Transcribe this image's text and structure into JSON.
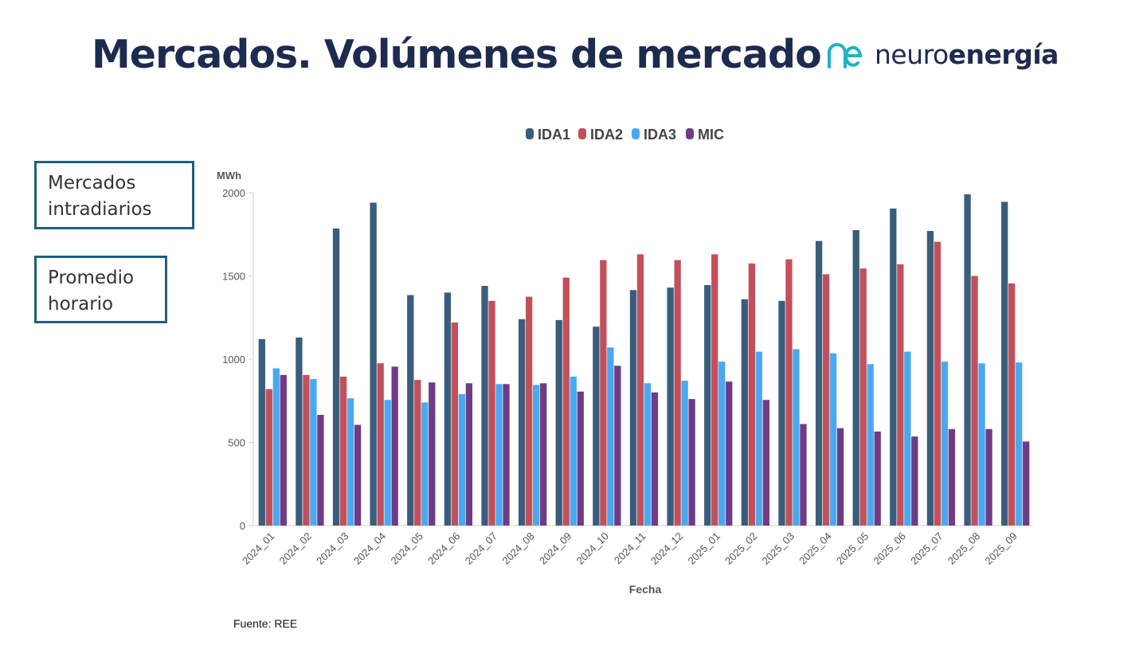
{
  "page": {
    "title": "Mercados. Volúmenes de mercado",
    "logo": {
      "prefix": "neuro",
      "suffix": "energía",
      "icon": "ne-logo-icon"
    },
    "boxes": [
      "Mercados intradiarios",
      "Promedio horario"
    ],
    "source": "Fuente: REE"
  },
  "colors": {
    "IDA1": "#3a5d7c",
    "IDA2": "#c2505b",
    "IDA3": "#4aa8f0",
    "MIC": "#6f3b86"
  },
  "chart_data": {
    "type": "bar",
    "title": "",
    "xlabel": "Fecha",
    "ylabel": "MWh",
    "ylim": [
      0,
      2000
    ],
    "yticks": [
      0,
      500,
      1000,
      1500,
      2000
    ],
    "legend": "top-center",
    "categories": [
      "2024_01",
      "2024_02",
      "2024_03",
      "2024_04",
      "2024_05",
      "2024_06",
      "2024_07",
      "2024_08",
      "2024_09",
      "2024_10",
      "2024_11",
      "2024_12",
      "2025_01",
      "2025_02",
      "2025_03",
      "2025_04",
      "2025_05",
      "2025_06",
      "2025_07",
      "2025_08",
      "2025_09"
    ],
    "series": [
      {
        "name": "IDA1",
        "values": [
          1120,
          1130,
          1785,
          1940,
          1385,
          1400,
          1440,
          1240,
          1235,
          1195,
          1415,
          1430,
          1445,
          1360,
          1350,
          1710,
          1775,
          1905,
          1770,
          1990,
          1945
        ]
      },
      {
        "name": "IDA2",
        "values": [
          820,
          905,
          895,
          975,
          875,
          1220,
          1350,
          1375,
          1490,
          1595,
          1630,
          1595,
          1630,
          1575,
          1600,
          1510,
          1545,
          1570,
          1705,
          1500,
          1455
        ]
      },
      {
        "name": "IDA3",
        "values": [
          945,
          880,
          765,
          755,
          740,
          790,
          850,
          845,
          895,
          1070,
          855,
          870,
          985,
          1045,
          1060,
          1035,
          970,
          1045,
          985,
          975,
          980
        ]
      },
      {
        "name": "MIC",
        "values": [
          905,
          665,
          605,
          955,
          860,
          855,
          850,
          855,
          805,
          960,
          800,
          760,
          865,
          755,
          610,
          585,
          565,
          535,
          580,
          580,
          505
        ]
      }
    ]
  }
}
